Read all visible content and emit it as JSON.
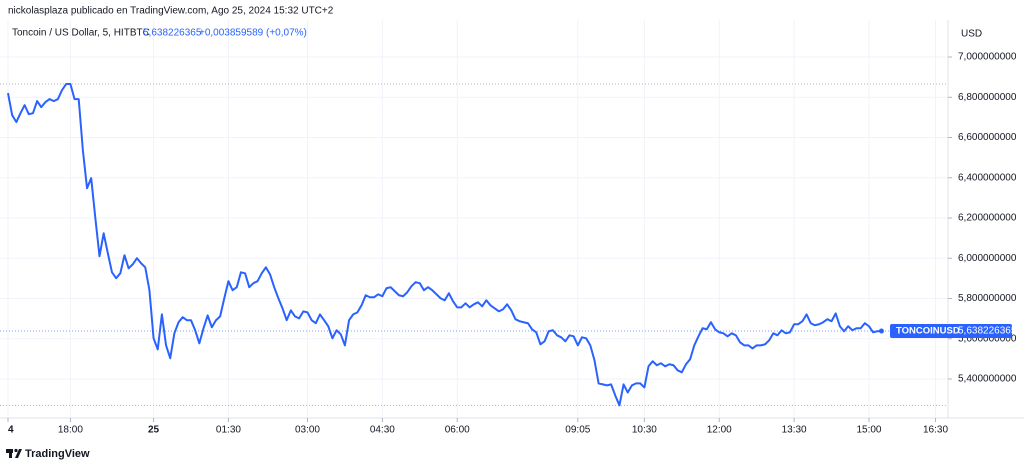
{
  "header": {
    "publisher": "nickolasplaza publicado en TradingView.com, Ago 25, 2024 15:32 UTC+2"
  },
  "footer": {
    "brand": "TradingView"
  },
  "chart_data": {
    "type": "line",
    "symbol": "Toncoin / US Dollar, 5, HITBTC",
    "last": "5,638226365",
    "change": "+0,003859589 (+0,07%)",
    "currency": "USD",
    "series": [
      {
        "name": "TONCOINUSD",
        "color": "#2962ff",
        "values": [
          6.821,
          6.711,
          6.677,
          6.721,
          6.761,
          6.716,
          6.721,
          6.781,
          6.751,
          6.776,
          6.791,
          6.781,
          6.791,
          6.836,
          6.866,
          6.866,
          6.791,
          6.791,
          6.537,
          6.348,
          6.398,
          6.199,
          6.01,
          6.124,
          6.025,
          5.93,
          5.901,
          5.925,
          6.015,
          5.95,
          5.97,
          6.0,
          5.975,
          5.955,
          5.841,
          5.602,
          5.547,
          5.721,
          5.567,
          5.503,
          5.627,
          5.682,
          5.707,
          5.692,
          5.692,
          5.642,
          5.577,
          5.652,
          5.716,
          5.657,
          5.692,
          5.711,
          5.801,
          5.886,
          5.841,
          5.856,
          5.93,
          5.925,
          5.856,
          5.876,
          5.886,
          5.925,
          5.955,
          5.92,
          5.856,
          5.801,
          5.751,
          5.692,
          5.741,
          5.711,
          5.701,
          5.736,
          5.731,
          5.692,
          5.677,
          5.721,
          5.692,
          5.662,
          5.602,
          5.642,
          5.622,
          5.567,
          5.692,
          5.721,
          5.731,
          5.766,
          5.816,
          5.806,
          5.806,
          5.821,
          5.811,
          5.851,
          5.856,
          5.836,
          5.816,
          5.811,
          5.831,
          5.861,
          5.881,
          5.876,
          5.841,
          5.856,
          5.841,
          5.821,
          5.801,
          5.791,
          5.826,
          5.786,
          5.756,
          5.756,
          5.776,
          5.756,
          5.771,
          5.781,
          5.761,
          5.791,
          5.766,
          5.751,
          5.736,
          5.746,
          5.771,
          5.741,
          5.697,
          5.687,
          5.682,
          5.677,
          5.647,
          5.632,
          5.572,
          5.587,
          5.637,
          5.642,
          5.617,
          5.607,
          5.587,
          5.617,
          5.612,
          5.567,
          5.607,
          5.602,
          5.567,
          5.493,
          5.378,
          5.373,
          5.368,
          5.373,
          5.318,
          5.269,
          5.373,
          5.333,
          5.368,
          5.378,
          5.378,
          5.358,
          5.463,
          5.488,
          5.468,
          5.478,
          5.463,
          5.473,
          5.468,
          5.443,
          5.433,
          5.473,
          5.498,
          5.567,
          5.612,
          5.652,
          5.647,
          5.682,
          5.647,
          5.632,
          5.627,
          5.612,
          5.627,
          5.617,
          5.582,
          5.567,
          5.567,
          5.552,
          5.567,
          5.567,
          5.572,
          5.592,
          5.627,
          5.617,
          5.642,
          5.627,
          5.632,
          5.672,
          5.672,
          5.687,
          5.721,
          5.677,
          5.667,
          5.672,
          5.682,
          5.697,
          5.687,
          5.726,
          5.662,
          5.637,
          5.662,
          5.642,
          5.652,
          5.652,
          5.677,
          5.662,
          5.632,
          5.637,
          5.638226365
        ]
      }
    ],
    "xlim": [
      0,
      226
    ],
    "xticks": [
      {
        "value": 0,
        "label": "4"
      },
      {
        "value": 15,
        "label": "18:00"
      },
      {
        "value": 35,
        "label": "25"
      },
      {
        "value": 53,
        "label": "01:30"
      },
      {
        "value": 72,
        "label": "03:00"
      },
      {
        "value": 90,
        "label": "04:30"
      },
      {
        "value": 108,
        "label": "06:00"
      },
      {
        "value": 137,
        "label": "09:05"
      },
      {
        "value": 153,
        "label": "10:30"
      },
      {
        "value": 171,
        "label": "12:00"
      },
      {
        "value": 189,
        "label": "13:30"
      },
      {
        "value": 207,
        "label": "15:00"
      },
      {
        "value": 223,
        "label": "16:30"
      }
    ],
    "ylim": [
      5.206,
      7.184
    ],
    "yticks": [
      {
        "value": 5.4,
        "label": "5,400000000"
      },
      {
        "value": 5.6,
        "label": "5,600000000"
      },
      {
        "value": 5.8,
        "label": "5,800000000"
      },
      {
        "value": 6.0,
        "label": "6,000000000"
      },
      {
        "value": 6.2,
        "label": "6,200000000"
      },
      {
        "value": 6.4,
        "label": "6,400000000"
      },
      {
        "value": 6.6,
        "label": "6,600000000"
      },
      {
        "value": 6.8,
        "label": "6,800000000"
      },
      {
        "value": 7.0,
        "label": "7,000000000"
      }
    ],
    "grid": true
  }
}
